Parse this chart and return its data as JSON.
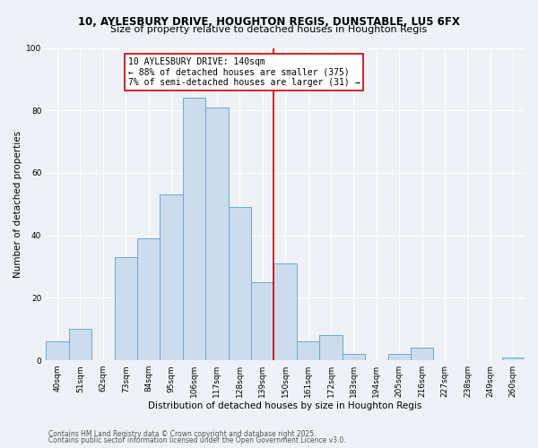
{
  "title_line1": "10, AYLESBURY DRIVE, HOUGHTON REGIS, DUNSTABLE, LU5 6FX",
  "title_line2": "Size of property relative to detached houses in Houghton Regis",
  "xlabel": "Distribution of detached houses by size in Houghton Regis",
  "ylabel": "Number of detached properties",
  "bin_labels": [
    "40sqm",
    "51sqm",
    "62sqm",
    "73sqm",
    "84sqm",
    "95sqm",
    "106sqm",
    "117sqm",
    "128sqm",
    "139sqm",
    "150sqm",
    "161sqm",
    "172sqm",
    "183sqm",
    "194sqm",
    "205sqm",
    "216sqm",
    "227sqm",
    "238sqm",
    "249sqm",
    "260sqm"
  ],
  "bar_values": [
    6,
    10,
    0,
    33,
    39,
    53,
    84,
    81,
    49,
    25,
    31,
    6,
    8,
    2,
    0,
    2,
    4,
    0,
    0,
    0,
    1
  ],
  "bar_color": "#ccdcec",
  "bar_edge_color": "#6aaad4",
  "vline_x": 9,
  "vline_color": "#cc0000",
  "annotation_text": "10 AYLESBURY DRIVE: 140sqm\n← 88% of detached houses are smaller (375)\n7% of semi-detached houses are larger (31) →",
  "annotation_box_edge": "#cc0000",
  "ylim": [
    0,
    100
  ],
  "yticks": [
    0,
    20,
    40,
    60,
    80,
    100
  ],
  "footnote_line1": "Contains HM Land Registry data © Crown copyright and database right 2025.",
  "footnote_line2": "Contains public sector information licensed under the Open Government Licence v3.0.",
  "background_color": "#eef2f7",
  "grid_color": "#ffffff",
  "title_fontsize": 8.5,
  "subtitle_fontsize": 8.0,
  "axis_label_fontsize": 7.5,
  "tick_fontsize": 6.5,
  "annotation_fontsize": 7.0,
  "footnote_fontsize": 5.5
}
